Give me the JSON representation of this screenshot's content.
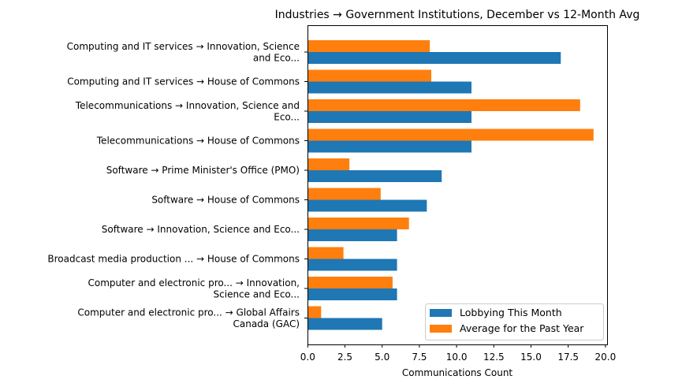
{
  "chart_data": {
    "type": "bar",
    "orientation": "horizontal",
    "title": "Industries → Government Institutions, December vs 12-Month Avg",
    "xlabel": "Communications Count",
    "ylabel": "",
    "xlim": [
      0,
      20.3
    ],
    "xticks": [
      "0.0",
      "2.5",
      "5.0",
      "7.5",
      "10.0",
      "12.5",
      "15.0",
      "17.5",
      "20.0"
    ],
    "grid": false,
    "legend_position": "lower-right",
    "categories": [
      [
        "Computing and IT services → Innovation, Science",
        "and Eco..."
      ],
      [
        "Computing and IT services → House of Commons"
      ],
      [
        "Telecommunications → Innovation, Science and",
        "Eco..."
      ],
      [
        "Telecommunications → House of Commons"
      ],
      [
        "Software → Prime Minister's Office (PMO)"
      ],
      [
        "Software → House of Commons"
      ],
      [
        "Software → Innovation, Science and Eco..."
      ],
      [
        "Broadcast media production ... → House of Commons"
      ],
      [
        "Computer and electronic pro... → Innovation,",
        "Science and Eco..."
      ],
      [
        "Computer and electronic pro... → Global Affairs",
        "Canada (GAC)"
      ]
    ],
    "series": [
      {
        "name": "Lobbying This Month",
        "color": "#1f77b4",
        "values": [
          17,
          11,
          11,
          11,
          9,
          8,
          6,
          6,
          6,
          5
        ]
      },
      {
        "name": "Average for the Past Year",
        "color": "#ff7f0e",
        "values": [
          8.2,
          8.3,
          18.3,
          19.2,
          2.8,
          4.9,
          6.8,
          2.4,
          5.7,
          0.9
        ]
      }
    ]
  }
}
